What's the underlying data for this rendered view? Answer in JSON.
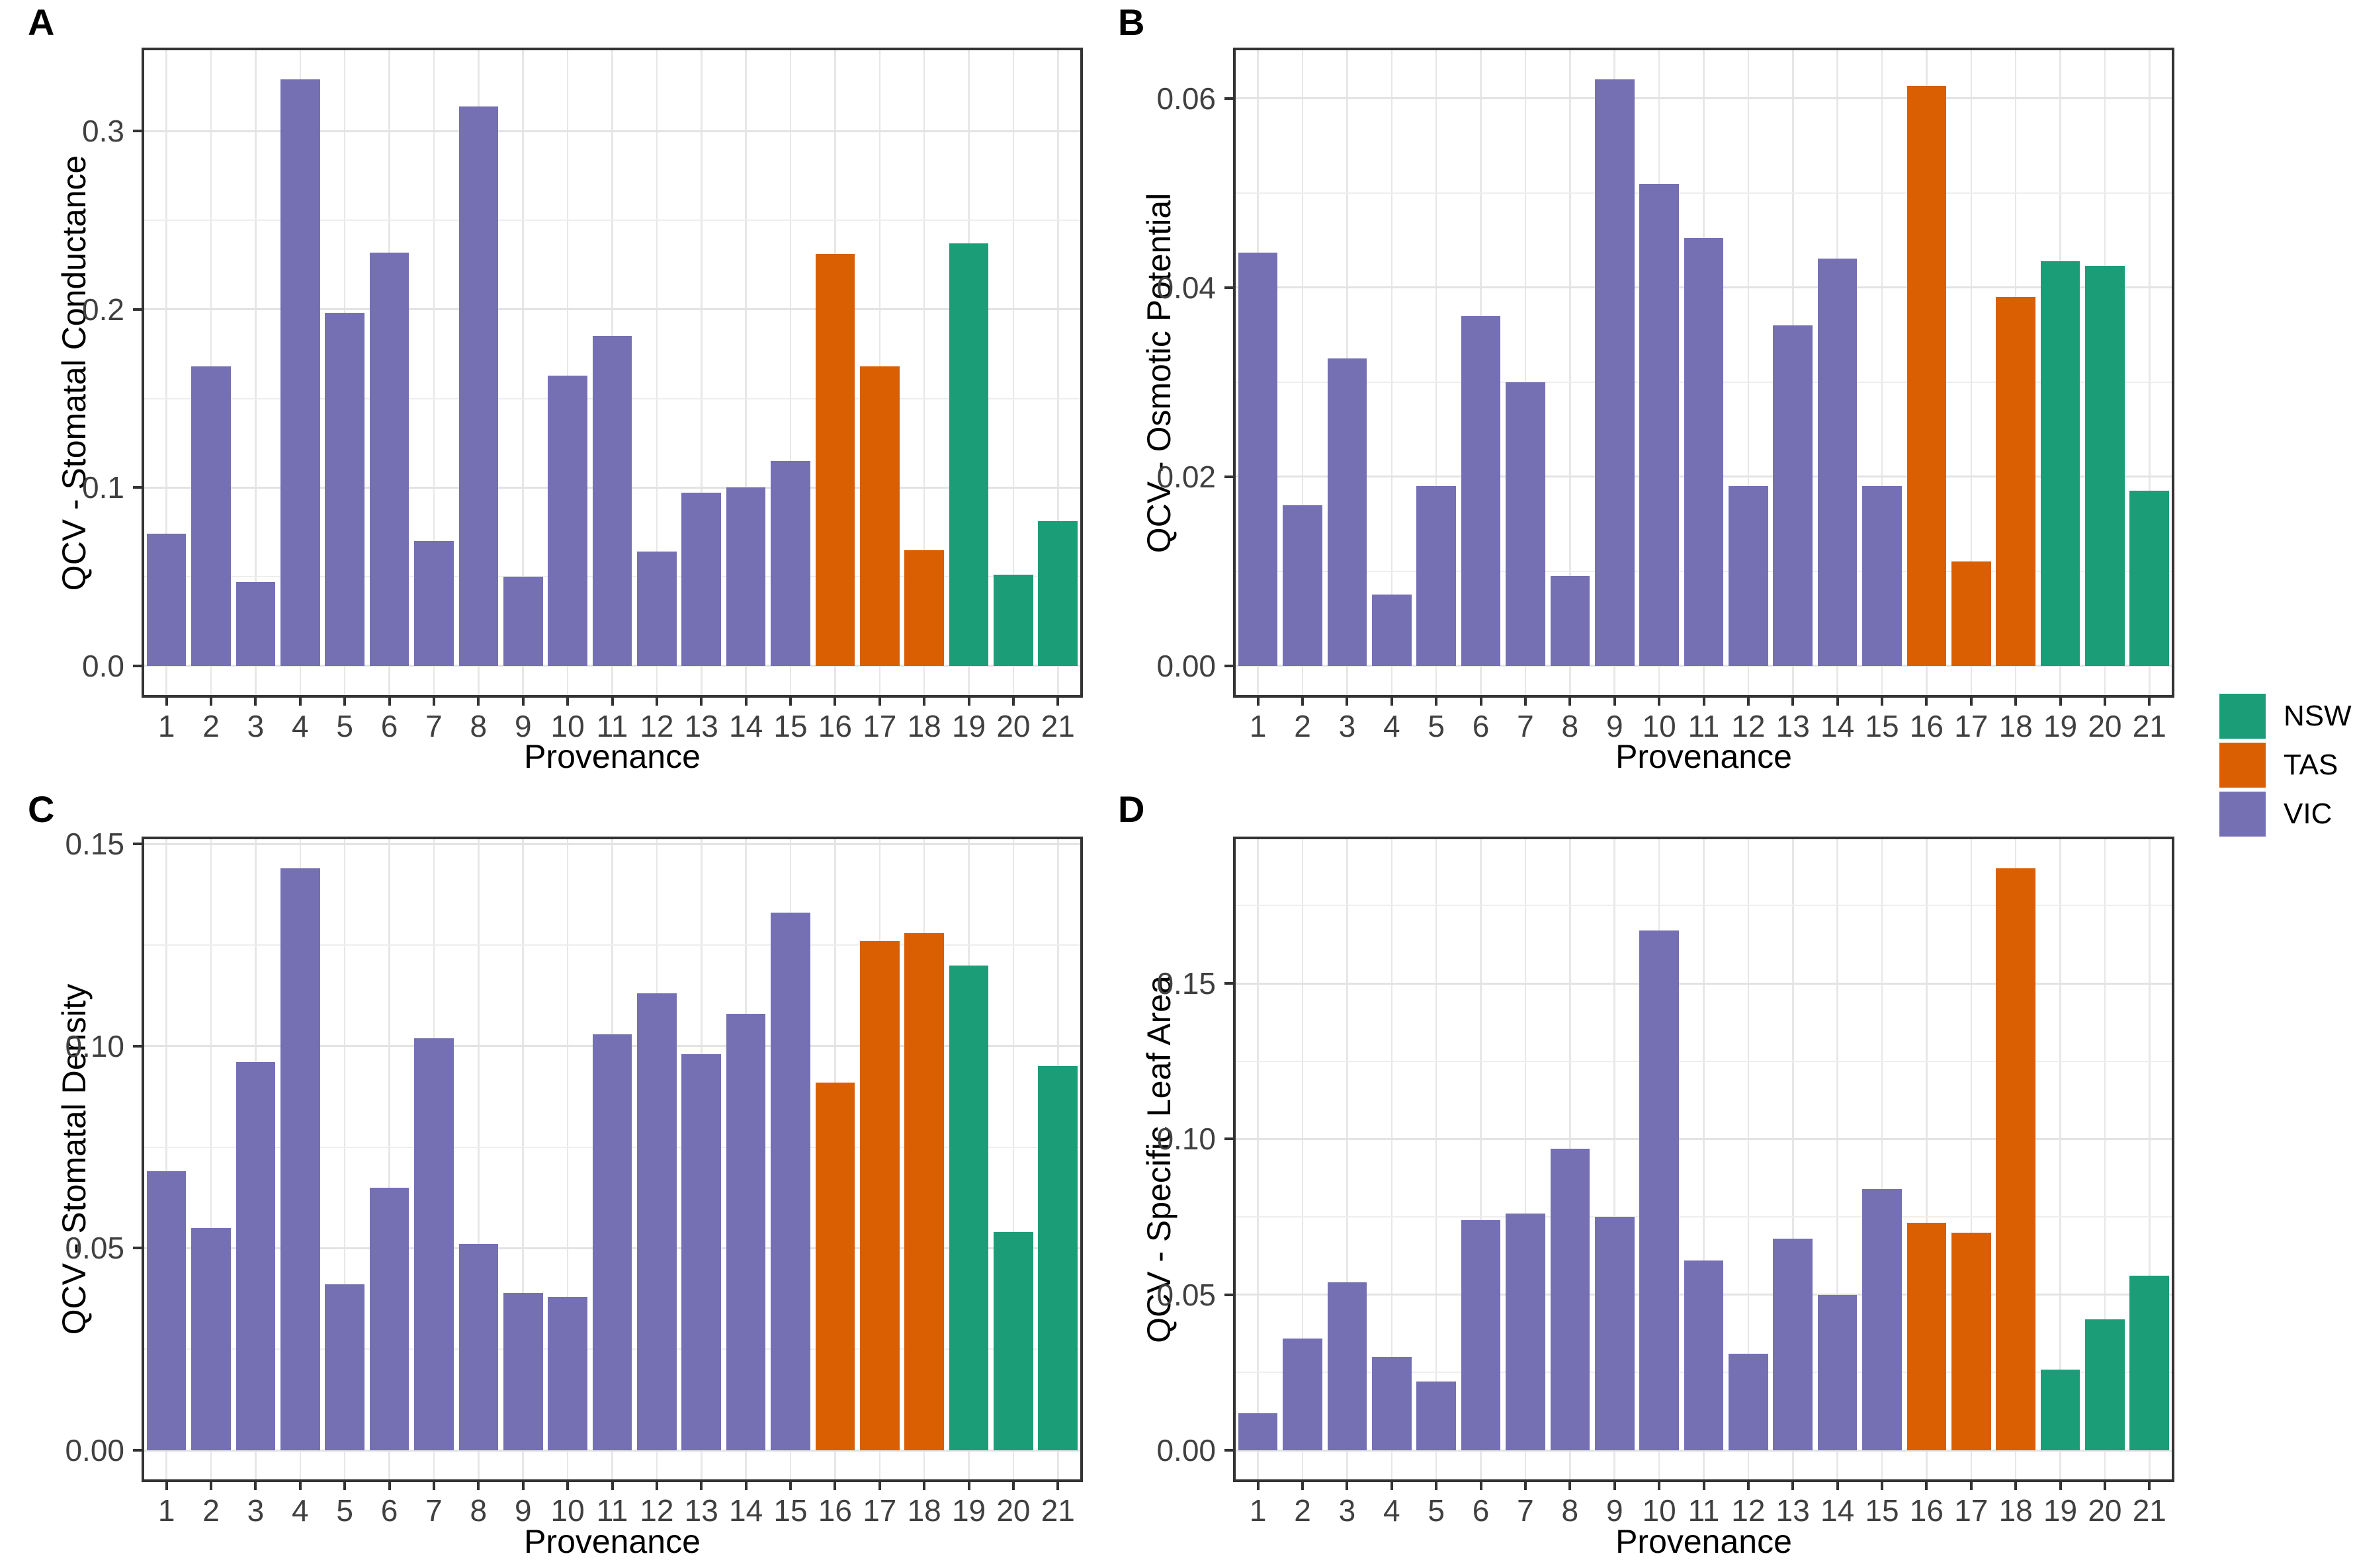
{
  "chart_data": {
    "type": "bar",
    "xlabel": "Provenance",
    "categories": [
      "1",
      "2",
      "3",
      "4",
      "5",
      "6",
      "7",
      "8",
      "9",
      "10",
      "11",
      "12",
      "13",
      "14",
      "15",
      "16",
      "17",
      "18",
      "19",
      "20",
      "21"
    ],
    "group_by_provenance": [
      "VIC",
      "VIC",
      "VIC",
      "VIC",
      "VIC",
      "VIC",
      "VIC",
      "VIC",
      "VIC",
      "VIC",
      "VIC",
      "VIC",
      "VIC",
      "VIC",
      "VIC",
      "TAS",
      "TAS",
      "TAS",
      "NSW",
      "NSW",
      "NSW"
    ],
    "group_colors": {
      "NSW": "#1b9e77",
      "TAS": "#d95f02",
      "VIC": "#7570b3"
    },
    "legend_items": [
      {
        "label": "NSW",
        "color": "#1b9e77"
      },
      {
        "label": "TAS",
        "color": "#d95f02"
      },
      {
        "label": "VIC",
        "color": "#7570b3"
      }
    ],
    "grid": "on",
    "legend_position": "right",
    "panels": [
      {
        "tag": "A",
        "ylabel": "QCV - Stomatal Conductance",
        "ylim": [
          0,
          0.345
        ],
        "yticks": [
          0,
          0.1,
          0.2,
          0.3
        ],
        "ytick_labels": [
          "0.0",
          "0.1",
          "0.2",
          "0.3"
        ],
        "minor_step": 0.05,
        "values": [
          0.074,
          0.168,
          0.047,
          0.329,
          0.198,
          0.232,
          0.07,
          0.314,
          0.05,
          0.163,
          0.185,
          0.064,
          0.097,
          0.1,
          0.115,
          0.231,
          0.168,
          0.065,
          0.237,
          0.051,
          0.081
        ]
      },
      {
        "tag": "B",
        "ylabel": "QCV - Osmotic Potential",
        "ylim": [
          0,
          0.065
        ],
        "yticks": [
          0,
          0.02,
          0.04,
          0.06
        ],
        "ytick_labels": [
          "0.00",
          "0.02",
          "0.04",
          "0.06"
        ],
        "minor_step": 0.01,
        "values": [
          0.0437,
          0.017,
          0.0325,
          0.0075,
          0.019,
          0.037,
          0.03,
          0.0095,
          0.062,
          0.051,
          0.0452,
          0.019,
          0.036,
          0.0431,
          0.019,
          0.0613,
          0.011,
          0.039,
          0.0428,
          0.0423,
          0.0185
        ]
      },
      {
        "tag": "C",
        "ylabel": "QCV - Stomatal Density",
        "ylim": [
          0,
          0.151
        ],
        "yticks": [
          0,
          0.05,
          0.1,
          0.15
        ],
        "ytick_labels": [
          "0.00",
          "0.05",
          "0.10",
          "0.15"
        ],
        "minor_step": 0.025,
        "values": [
          0.069,
          0.055,
          0.096,
          0.144,
          0.041,
          0.065,
          0.102,
          0.051,
          0.039,
          0.038,
          0.103,
          0.113,
          0.098,
          0.108,
          0.133,
          0.091,
          0.126,
          0.128,
          0.12,
          0.054,
          0.095
        ]
      },
      {
        "tag": "D",
        "ylabel": "QCV - Specific Leaf Area",
        "ylim": [
          0,
          0.196
        ],
        "yticks": [
          0,
          0.05,
          0.1,
          0.15
        ],
        "ytick_labels": [
          "0.00",
          "0.05",
          "0.10",
          "0.15"
        ],
        "minor_step": 0.025,
        "values": [
          0.012,
          0.036,
          0.054,
          0.03,
          0.022,
          0.074,
          0.076,
          0.097,
          0.075,
          0.167,
          0.061,
          0.031,
          0.068,
          0.05,
          0.084,
          0.073,
          0.07,
          0.187,
          0.026,
          0.042,
          0.056
        ]
      }
    ]
  }
}
